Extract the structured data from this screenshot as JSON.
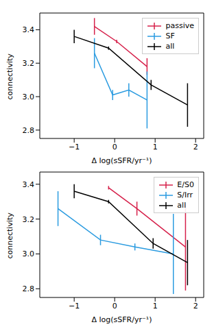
{
  "chart_data": [
    {
      "type": "line",
      "x_label": "Δ log(sSFR/yr⁻¹)",
      "y_label": "connectivity",
      "xlim": [
        -1.85,
        2.2
      ],
      "xticks": [
        {
          "value": -1,
          "label": "−1"
        },
        0,
        1,
        2
      ],
      "ylim": [
        2.75,
        3.5
      ],
      "yticks": [
        2.8,
        {
          "value": 3,
          "label": "3.0"
        },
        3.2,
        3.4
      ],
      "legend": "upper right",
      "series": [
        {
          "name": "passive",
          "color": "#d6204a",
          "x": [
            -0.5,
            0.05,
            0.8
          ],
          "values": [
            3.42,
            3.33,
            3.18
          ],
          "errors": [
            0.05,
            0.01,
            0.05
          ]
        },
        {
          "name": "SF",
          "color": "#2a9be0",
          "x": [
            -0.5,
            -0.05,
            0.35,
            0.8
          ],
          "values": [
            3.26,
            3.01,
            3.04,
            2.98
          ],
          "errors": [
            0.09,
            0.03,
            0.04,
            0.17
          ]
        },
        {
          "name": "all",
          "color": "#000000",
          "x": [
            -1.0,
            -0.15,
            0.9,
            1.8
          ],
          "values": [
            3.36,
            3.29,
            3.07,
            2.95
          ],
          "errors": [
            0.04,
            0.01,
            0.03,
            0.13
          ]
        }
      ]
    },
    {
      "type": "line",
      "x_label": "Δ log(sSFR/yr⁻¹)",
      "y_label": "connectivity",
      "xlim": [
        -1.85,
        2.2
      ],
      "xticks": [
        {
          "value": -1,
          "label": "−1"
        },
        0,
        1,
        2
      ],
      "ylim": [
        2.75,
        3.47
      ],
      "yticks": [
        2.8,
        {
          "value": 3,
          "label": "3.0"
        },
        3.2,
        3.4
      ],
      "legend": "upper right",
      "series": [
        {
          "name": "E/S0",
          "color": "#d6204a",
          "x": [
            -0.15,
            0.55,
            1.75
          ],
          "values": [
            3.38,
            3.26,
            3.04
          ],
          "errors": [
            0.01,
            0.04,
            0.25
          ]
        },
        {
          "name": "S/Irr",
          "color": "#2a9be0",
          "x": [
            -1.4,
            -0.35,
            0.5,
            1.45
          ],
          "values": [
            3.26,
            3.08,
            3.04,
            3.0
          ],
          "errors": [
            0.1,
            0.03,
            0.02,
            0.23
          ]
        },
        {
          "name": "all",
          "color": "#000000",
          "x": [
            -1.0,
            -0.15,
            0.95,
            1.8
          ],
          "values": [
            3.36,
            3.3,
            3.06,
            2.95
          ],
          "errors": [
            0.04,
            0.01,
            0.03,
            0.13
          ]
        }
      ]
    }
  ]
}
